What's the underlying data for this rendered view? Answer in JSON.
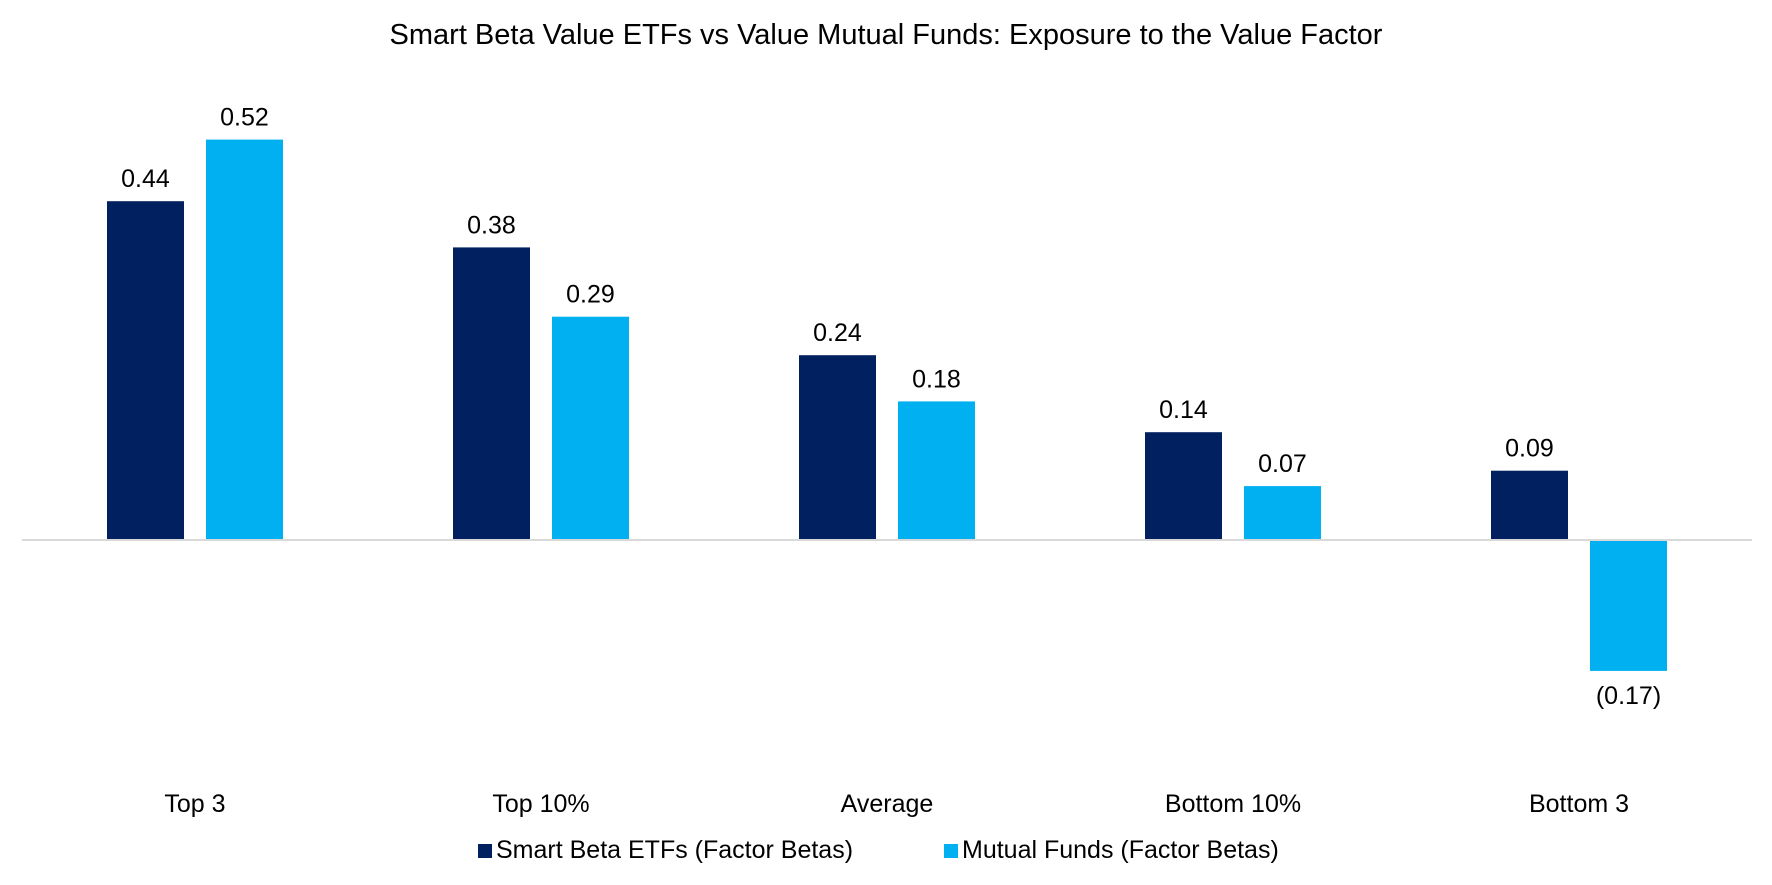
{
  "chart_data": {
    "type": "bar",
    "title": "Smart Beta Value ETFs vs Value Mutual Funds: Exposure to the Value Factor",
    "categories": [
      "Top 3",
      "Top 10%",
      "Average",
      "Bottom 10%",
      "Bottom 3"
    ],
    "series": [
      {
        "name": "Smart Beta ETFs (Factor Betas)",
        "color": "#002060",
        "values": [
          0.44,
          0.38,
          0.24,
          0.14,
          0.09
        ],
        "labels": [
          "0.44",
          "0.38",
          "0.24",
          "0.14",
          "0.09"
        ]
      },
      {
        "name": "Mutual Funds (Factor Betas)",
        "color": "#00B0F0",
        "values": [
          0.52,
          0.29,
          0.18,
          0.07,
          -0.17
        ],
        "labels": [
          "0.52",
          "0.29",
          "0.18",
          "0.07",
          "(0.17)"
        ]
      }
    ],
    "ylim": [
      -0.26,
      0.6
    ],
    "y_axis_visible": false,
    "grid": false,
    "legend_position": "bottom"
  },
  "colors": {
    "background": "#FFFFFF",
    "zero_line": "#D9D9D9",
    "text": "#000000"
  }
}
